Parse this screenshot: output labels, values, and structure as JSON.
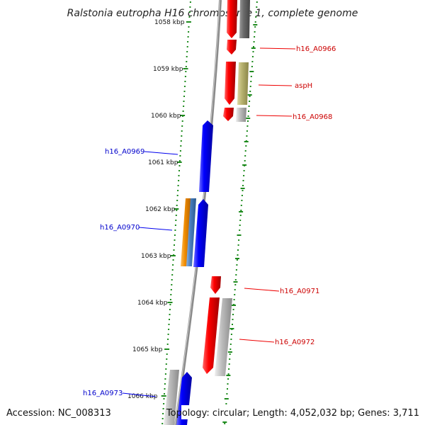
{
  "title": "Ralstonia eutropha H16 chromosome 1, complete genome",
  "footer": {
    "accession": "Accession: NC_008313",
    "topology": "Topology: circular; Length: 4,052,032 bp; Genes: 3,711"
  },
  "colors": {
    "forward": "#ee0000",
    "reverse": "#0000ee",
    "gray": "#aaaaaa",
    "olive": "#b5b070",
    "orange": "#f0900a",
    "steel": "#4a7fc0",
    "tick": "#1d8a1d",
    "backbone": "#777777"
  },
  "kbp_labels": [
    "1058 kbp",
    "1059 kbp",
    "1060 kbp",
    "1061 kbp",
    "1062 kbp",
    "1063 kbp",
    "1064 kbp",
    "1065 kbp",
    "1066 kbp"
  ],
  "gene_labels": [
    {
      "text": "h16_A0966",
      "strand": "forward"
    },
    {
      "text": "aspH",
      "strand": "forward"
    },
    {
      "text": "h16_A0968",
      "strand": "forward"
    },
    {
      "text": "h16_A0969",
      "strand": "reverse"
    },
    {
      "text": "h16_A0970",
      "strand": "reverse"
    },
    {
      "text": "h16_A0971",
      "strand": "forward"
    },
    {
      "text": "h16_A0972",
      "strand": "forward"
    },
    {
      "text": "h16_A0973",
      "strand": "reverse"
    }
  ]
}
